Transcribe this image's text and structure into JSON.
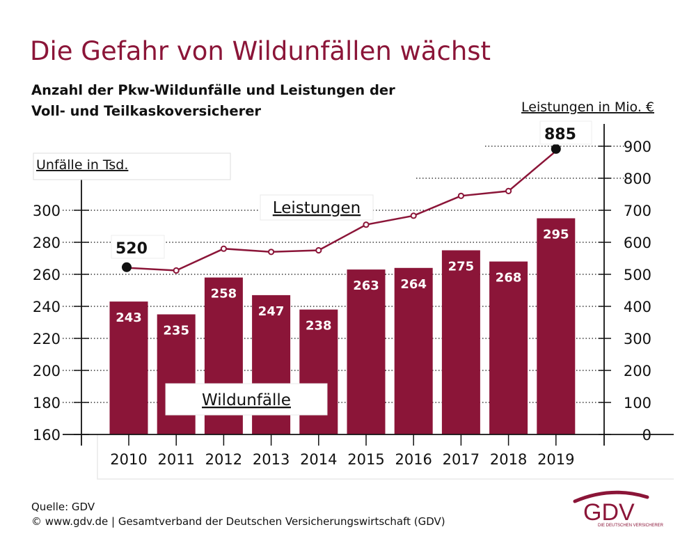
{
  "title": "Die Gefahr von Wildunfällen wächst",
  "subtitle": [
    "Anzahl der Pkw-Wildunfälle und Leistungen der",
    "Voll- und Teilkaskoversicherer"
  ],
  "source": {
    "line1": "Quelle: GDV",
    "line2": "© www.gdv.de | Gesamtverband der Deutschen Versicherungswirtschaft (GDV)"
  },
  "logo": {
    "text": "GDV",
    "subtext": "DIE DEUTSCHEN VERSICHERER"
  },
  "colors": {
    "accent": "#8b1538",
    "text": "#111111"
  },
  "chart_data": {
    "type": "bar+line",
    "categories": [
      "2010",
      "2011",
      "2012",
      "2013",
      "2014",
      "2015",
      "2016",
      "2017",
      "2018",
      "2019"
    ],
    "series": [
      {
        "name": "Wildunfälle",
        "type": "bar",
        "axis": "left",
        "label": "Wildunfälle",
        "values": [
          243,
          235,
          258,
          247,
          238,
          263,
          264,
          275,
          268,
          295
        ],
        "value_labels": [
          "243",
          "235",
          "258",
          "247",
          "238",
          "263",
          "264",
          "275",
          "268",
          "295"
        ]
      },
      {
        "name": "Leistungen",
        "type": "line",
        "axis": "right",
        "label": "Leistungen",
        "values": [
          520,
          512,
          580,
          570,
          575,
          655,
          683,
          745,
          760,
          885
        ],
        "callouts": [
          {
            "index": 0,
            "text": "520"
          },
          {
            "index": 9,
            "text": "885"
          }
        ]
      }
    ],
    "left_axis": {
      "label": "Unfälle in Tsd.",
      "ylim": [
        160,
        300
      ],
      "ticks": [
        160,
        180,
        200,
        220,
        240,
        260,
        280,
        300
      ],
      "tick_labels": [
        "160",
        "180",
        "200",
        "220",
        "240",
        "260",
        "280",
        "300"
      ]
    },
    "right_axis": {
      "label": "Leistungen in Mio. €",
      "ylim": [
        0,
        900
      ],
      "ticks": [
        0,
        100,
        200,
        300,
        400,
        500,
        600,
        700,
        800,
        900
      ],
      "tick_labels": [
        "0",
        "100",
        "200",
        "300",
        "400",
        "500",
        "600",
        "700",
        "800",
        "900"
      ]
    },
    "grid": "dotted"
  }
}
